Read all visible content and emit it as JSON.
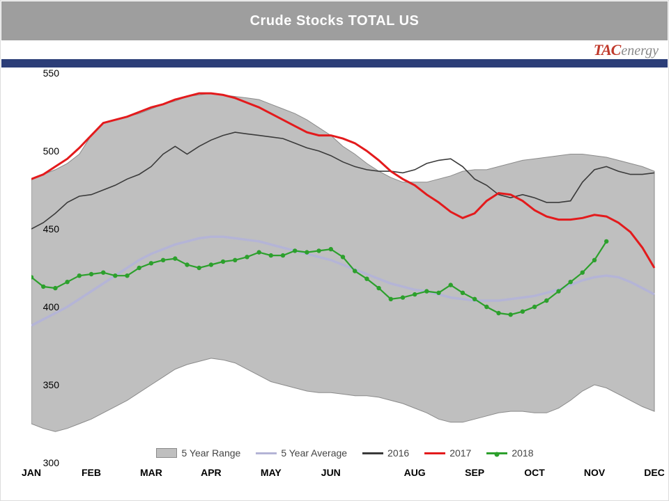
{
  "title": "Crude Stocks TOTAL US",
  "logo": {
    "tac": "TAC",
    "energy": "energy"
  },
  "colors": {
    "title_bar": "#9e9e9e",
    "accent_bar": "#2c3e78",
    "range_fill": "#bfbfbf",
    "range_edge": "#8a8a8a",
    "avg": "#b4b4d6",
    "s2016": "#3a3a3a",
    "s2017": "#e31a1c",
    "s2018": "#2ca02c",
    "tick": "#000000",
    "bg": "#ffffff"
  },
  "chart": {
    "type": "line+area",
    "ylim": [
      300,
      550
    ],
    "ytick_step": 50,
    "yticks": [
      300,
      350,
      400,
      450,
      500,
      550
    ],
    "xrange": [
      0,
      52
    ],
    "month_ticks": [
      {
        "label": "JAN",
        "week": 0
      },
      {
        "label": "FEB",
        "week": 5
      },
      {
        "label": "MAR",
        "week": 10
      },
      {
        "label": "APR",
        "week": 15
      },
      {
        "label": "MAY",
        "week": 20
      },
      {
        "label": "JUN",
        "week": 25
      },
      {
        "label": "AUG",
        "week": 32
      },
      {
        "label": "SEP",
        "week": 37
      },
      {
        "label": "OCT",
        "week": 42
      },
      {
        "label": "NOV",
        "week": 47
      },
      {
        "label": "DEC",
        "week": 52
      }
    ],
    "label_fontsize": 14,
    "line_width_2016": 1.6,
    "line_width_2017": 3.0,
    "line_width_avg": 3.5,
    "line_width_2018": 2.2,
    "marker_radius_2018": 3.2,
    "series": {
      "range_high": [
        482,
        485,
        488,
        492,
        498,
        510,
        518,
        520,
        522,
        524,
        527,
        530,
        532,
        535,
        536,
        537,
        536,
        535,
        534,
        533,
        530,
        527,
        524,
        520,
        515,
        510,
        503,
        498,
        492,
        487,
        483,
        480,
        480,
        480,
        482,
        484,
        487,
        488,
        488,
        490,
        492,
        494,
        495,
        496,
        497,
        498,
        498,
        497,
        496,
        494,
        492,
        490,
        487
      ],
      "range_low": [
        325,
        322,
        320,
        322,
        325,
        328,
        332,
        336,
        340,
        345,
        350,
        355,
        360,
        363,
        365,
        367,
        366,
        364,
        360,
        356,
        352,
        350,
        348,
        346,
        345,
        345,
        344,
        343,
        343,
        342,
        340,
        338,
        335,
        332,
        328,
        326,
        326,
        328,
        330,
        332,
        333,
        333,
        332,
        332,
        335,
        340,
        346,
        350,
        348,
        344,
        340,
        336,
        333
      ],
      "avg": [
        388,
        392,
        396,
        400,
        405,
        410,
        415,
        420,
        425,
        430,
        434,
        437,
        440,
        442,
        444,
        445,
        445,
        444,
        443,
        442,
        440,
        438,
        436,
        434,
        432,
        430,
        427,
        424,
        421,
        418,
        415,
        413,
        411,
        410,
        408,
        406,
        405,
        404,
        404,
        404,
        405,
        406,
        407,
        409,
        411,
        414,
        417,
        419,
        420,
        419,
        416,
        412,
        408
      ],
      "s2016": [
        450,
        454,
        460,
        467,
        471,
        472,
        475,
        478,
        482,
        485,
        490,
        498,
        503,
        498,
        503,
        507,
        510,
        512,
        511,
        510,
        509,
        508,
        505,
        502,
        500,
        497,
        493,
        490,
        488,
        487,
        487,
        486,
        488,
        492,
        494,
        495,
        490,
        482,
        478,
        472,
        470,
        472,
        470,
        467,
        467,
        468,
        480,
        488,
        490,
        487,
        485,
        485,
        486
      ],
      "s2017": [
        482,
        485,
        490,
        495,
        502,
        510,
        518,
        520,
        522,
        525,
        528,
        530,
        533,
        535,
        537,
        537,
        536,
        534,
        531,
        528,
        524,
        520,
        516,
        512,
        510,
        510,
        508,
        505,
        500,
        494,
        487,
        482,
        478,
        472,
        467,
        461,
        457,
        460,
        468,
        473,
        472,
        468,
        462,
        458,
        456,
        456,
        457,
        459,
        458,
        454,
        448,
        438,
        425
      ],
      "s2018": [
        419,
        413,
        412,
        416,
        420,
        421,
        422,
        420,
        420,
        425,
        428,
        430,
        431,
        427,
        425,
        427,
        429,
        430,
        432,
        435,
        433,
        433,
        436,
        435,
        436,
        437,
        432,
        423,
        418,
        412,
        405,
        406,
        408,
        410,
        409,
        414,
        409,
        405,
        400,
        396,
        395,
        397,
        400,
        404,
        410,
        416,
        422,
        430,
        442
      ]
    },
    "legend": [
      {
        "label": "5 Year Range",
        "kind": "box"
      },
      {
        "label": "5 Year Average",
        "kind": "line",
        "color_key": "avg"
      },
      {
        "label": "2016",
        "kind": "line",
        "color_key": "s2016"
      },
      {
        "label": "2017",
        "kind": "line",
        "color_key": "s2017"
      },
      {
        "label": "2018",
        "kind": "line-dot",
        "color_key": "s2018"
      }
    ]
  }
}
